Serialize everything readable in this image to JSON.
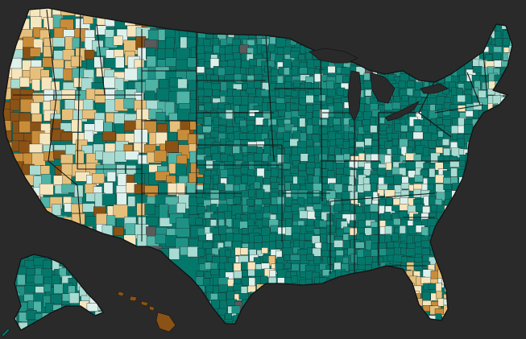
{
  "map": {
    "legend": [],
    "palette": {
      "background": "#2a2a2a",
      "dark_teal": "#04776b",
      "teal": "#1e9185",
      "mid_teal": "#4fb3a6",
      "light_teal": "#a8dcd2",
      "pale": "#dff1ec",
      "cream": "#f6e6bd",
      "sand": "#e6c07b",
      "tan": "#c98d3a",
      "dark_brown": "#8a5215",
      "gray": "#5a5a5a"
    },
    "regions": [
      {
        "name": "contiguous-us",
        "dominant_color": "dark_teal"
      },
      {
        "name": "alaska",
        "dominant_color": "dark_teal"
      },
      {
        "name": "hawaii",
        "dominant_color": "dark_brown"
      }
    ]
  }
}
